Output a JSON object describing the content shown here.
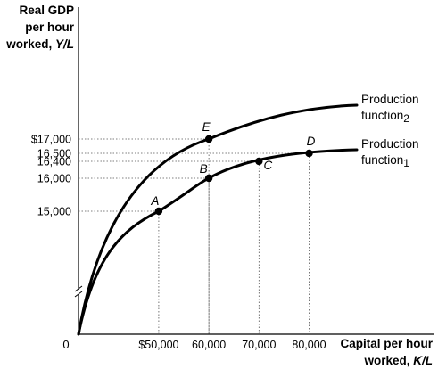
{
  "chart_data": {
    "type": "line",
    "ylabel_lines": [
      "Real GDP",
      "per hour",
      "worked, "
    ],
    "ylabel_var": "Y/L",
    "xlabel_lines": [
      "Capital per hour",
      "worked, "
    ],
    "xlabel_var": "K/L",
    "origin_label": "0",
    "x_ticks": [
      {
        "value": 50000,
        "label": "$50,000"
      },
      {
        "value": 60000,
        "label": "60,000"
      },
      {
        "value": 70000,
        "label": "70,000"
      },
      {
        "value": 80000,
        "label": "80,000"
      }
    ],
    "y_ticks": [
      {
        "value": 15000,
        "label": "15,000"
      },
      {
        "value": 16000,
        "label": "16,000"
      },
      {
        "value": 16400,
        "label": "16,400"
      },
      {
        "value": 16500,
        "label": "16,500"
      },
      {
        "value": 17000,
        "label": "$17,000"
      }
    ],
    "axis_break": true,
    "series": [
      {
        "name": "Production function",
        "subscript": "1"
      },
      {
        "name": "Production function",
        "subscript": "2"
      }
    ],
    "points": [
      {
        "label": "A",
        "series": 1,
        "x": 50000,
        "y": 15000
      },
      {
        "label": "B",
        "series": 1,
        "x": 60000,
        "y": 16000
      },
      {
        "label": "C",
        "series": 1,
        "x": 70000,
        "y": 16400
      },
      {
        "label": "D",
        "series": 1,
        "x": 80000,
        "y": 16500
      },
      {
        "label": "E",
        "series": 2,
        "x": 60000,
        "y": 17000
      }
    ]
  }
}
